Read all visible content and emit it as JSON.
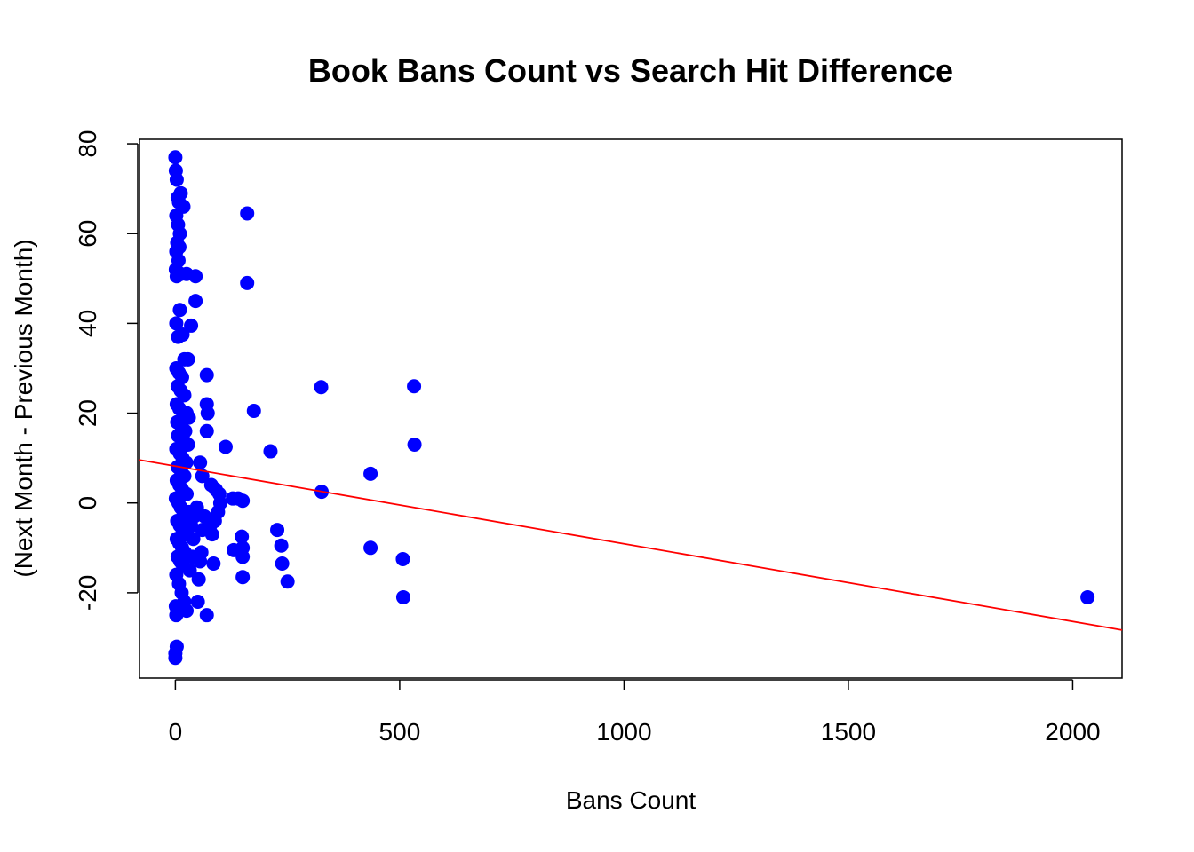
{
  "chart_data": {
    "type": "scatter",
    "title": "Book Bans Count vs Search Hit Difference",
    "xlabel": "Bans Count",
    "ylabel": "(Next Month - Previous Month)",
    "xlim": [
      -80,
      2110
    ],
    "ylim": [
      -39,
      81
    ],
    "xticks": [
      0,
      500,
      1000,
      1500,
      2000
    ],
    "yticks": [
      -20,
      0,
      20,
      40,
      60,
      80
    ],
    "xtick_labels": [
      "0",
      "500",
      "1000",
      "1500",
      "2000"
    ],
    "ytick_labels": [
      "-20",
      "0",
      "20",
      "40",
      "60",
      "80"
    ],
    "grid": false,
    "point_color": "#0000ff",
    "trend_color": "#ff0000",
    "trend_line": {
      "intercept": 8.2,
      "slope": -0.0173
    },
    "points": [
      [
        0,
        77
      ],
      [
        1,
        74
      ],
      [
        3,
        72
      ],
      [
        5,
        68
      ],
      [
        8,
        67
      ],
      [
        12,
        69
      ],
      [
        18,
        66
      ],
      [
        2,
        64
      ],
      [
        6,
        62
      ],
      [
        10,
        60
      ],
      [
        4,
        58
      ],
      [
        9,
        57
      ],
      [
        2,
        56
      ],
      [
        7,
        54
      ],
      [
        1,
        52
      ],
      [
        3,
        50.5
      ],
      [
        12,
        51
      ],
      [
        25,
        51
      ],
      [
        45,
        50.5
      ],
      [
        45,
        45
      ],
      [
        10,
        43
      ],
      [
        2,
        40
      ],
      [
        6,
        37
      ],
      [
        16,
        37.5
      ],
      [
        35,
        39.5
      ],
      [
        20,
        32
      ],
      [
        28,
        32
      ],
      [
        2,
        30
      ],
      [
        8,
        29
      ],
      [
        15,
        28
      ],
      [
        5,
        26
      ],
      [
        12,
        25
      ],
      [
        20,
        24
      ],
      [
        3,
        22
      ],
      [
        9,
        21
      ],
      [
        25,
        20
      ],
      [
        30,
        19
      ],
      [
        4,
        18
      ],
      [
        14,
        17
      ],
      [
        22,
        16
      ],
      [
        6,
        15
      ],
      [
        18,
        14
      ],
      [
        28,
        13
      ],
      [
        2,
        12
      ],
      [
        10,
        11
      ],
      [
        16,
        10
      ],
      [
        24,
        9
      ],
      [
        5,
        8
      ],
      [
        13,
        7
      ],
      [
        20,
        6
      ],
      [
        3,
        5
      ],
      [
        9,
        4
      ],
      [
        15,
        3
      ],
      [
        25,
        2
      ],
      [
        1,
        1
      ],
      [
        7,
        0
      ],
      [
        12,
        -1
      ],
      [
        18,
        -2
      ],
      [
        26,
        -3
      ],
      [
        4,
        -4
      ],
      [
        10,
        -5
      ],
      [
        16,
        -6
      ],
      [
        22,
        -7
      ],
      [
        3,
        -8
      ],
      [
        9,
        -9
      ],
      [
        15,
        -10
      ],
      [
        21,
        -11
      ],
      [
        5,
        -12
      ],
      [
        11,
        -13
      ],
      [
        17,
        -14
      ],
      [
        2,
        -16
      ],
      [
        8,
        -18
      ],
      [
        14,
        -20
      ],
      [
        20,
        -22
      ],
      [
        1,
        -23
      ],
      [
        6,
        -24
      ],
      [
        2,
        -25
      ],
      [
        25,
        -24
      ],
      [
        3,
        -32
      ],
      [
        0,
        -33.5
      ],
      [
        0,
        -34.5
      ],
      [
        30,
        -2
      ],
      [
        35,
        -5
      ],
      [
        40,
        -8
      ],
      [
        38,
        -12
      ],
      [
        32,
        -15
      ],
      [
        42,
        -3
      ],
      [
        48,
        -1
      ],
      [
        55,
        9
      ],
      [
        60,
        6
      ],
      [
        70,
        28.5
      ],
      [
        70,
        22
      ],
      [
        72,
        20
      ],
      [
        70,
        16
      ],
      [
        80,
        4
      ],
      [
        90,
        3
      ],
      [
        98,
        2
      ],
      [
        100,
        0
      ],
      [
        95,
        -2
      ],
      [
        88,
        -4
      ],
      [
        82,
        -7
      ],
      [
        78,
        -5
      ],
      [
        65,
        -3
      ],
      [
        60,
        -6
      ],
      [
        58,
        -11
      ],
      [
        55,
        -13
      ],
      [
        52,
        -17
      ],
      [
        50,
        -22
      ],
      [
        70,
        -25
      ],
      [
        85,
        -13.5
      ],
      [
        112,
        12.5
      ],
      [
        128,
        1
      ],
      [
        140,
        1
      ],
      [
        150,
        0.5
      ],
      [
        148,
        -7.5
      ],
      [
        150,
        -10
      ],
      [
        130,
        -10.5
      ],
      [
        150,
        -12
      ],
      [
        150,
        -16.5
      ],
      [
        160,
        64.5
      ],
      [
        160,
        49
      ],
      [
        175,
        20.5
      ],
      [
        212,
        11.5
      ],
      [
        227,
        -6
      ],
      [
        236,
        -9.5
      ],
      [
        238,
        -13.5
      ],
      [
        250,
        -17.5
      ],
      [
        325,
        25.8
      ],
      [
        326,
        2.5
      ],
      [
        435,
        6.5
      ],
      [
        435,
        -10
      ],
      [
        507,
        -12.5
      ],
      [
        508,
        -21
      ],
      [
        532,
        26
      ],
      [
        533,
        13
      ],
      [
        2033,
        -21
      ]
    ]
  }
}
